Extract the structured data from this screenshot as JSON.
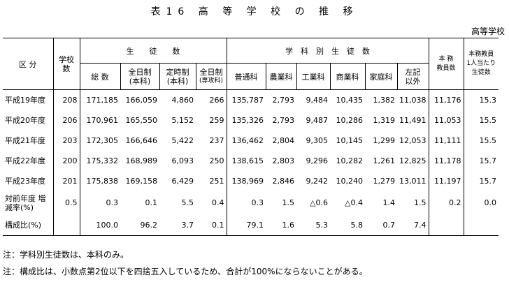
{
  "title": "表16 高 等 学 校 の 推 移",
  "unit": "高等学校",
  "header": {
    "kubun": "区 分",
    "gakkosu_1": "学校",
    "gakkosu_2": "数",
    "seitosu": "生　　徒　　数",
    "gakkabetsu": "学　科　別　生　徒　数",
    "honmu_1": "本 務",
    "honmu_2": "教員数",
    "per_1": "本務教員",
    "per_2": "1人当たり",
    "per_3": "生徒数",
    "sub": {
      "souzu": "総 数",
      "zen_1": "全日制",
      "zen_2": "(本科)",
      "tei_1": "定時制",
      "tei_2": "(本科)",
      "zs_1": "全日制",
      "zs_2": "(専攻科)",
      "futsu": "普通科",
      "nogyo": "農業科",
      "kogyo": "工業科",
      "shogyo": "商業科",
      "katei": "家庭科",
      "sak_1": "左記",
      "sak_2": "以外"
    }
  },
  "rows": [
    {
      "label": "平成19年度",
      "v": [
        "208",
        "171,185",
        "166,059",
        "4,860",
        "266",
        "135,787",
        "2,793",
        "9,484",
        "10,435",
        "1,382",
        "11,038",
        "11,176",
        "15.3"
      ]
    },
    {
      "label": "平成20年度",
      "v": [
        "206",
        "170,961",
        "165,550",
        "5,152",
        "259",
        "135,326",
        "2,793",
        "9,487",
        "10,286",
        "1,319",
        "11,491",
        "11,053",
        "15.5"
      ]
    },
    {
      "label": "平成21年度",
      "v": [
        "203",
        "172,305",
        "166,646",
        "5,422",
        "237",
        "136,462",
        "2,804",
        "9,305",
        "10,145",
        "1,299",
        "12,053",
        "11,111",
        "15.5"
      ]
    },
    {
      "label": "平成22年度",
      "v": [
        "200",
        "175,332",
        "168,989",
        "6,093",
        "250",
        "138,615",
        "2,803",
        "9,296",
        "10,282",
        "1,261",
        "12,825",
        "11,178",
        "15.7"
      ]
    },
    {
      "label": "平成23年度",
      "v": [
        "201",
        "175,838",
        "169,158",
        "6,429",
        "251",
        "138,969",
        "2,846",
        "9,242",
        "10,240",
        "1,279",
        "13,011",
        "11,197",
        "15.7"
      ]
    }
  ],
  "change": {
    "label_1": "対前年度 増",
    "label_2": "減率(%)",
    "v": [
      "0.5",
      "0.3",
      "0.1",
      "5.5",
      "0.4",
      "0.3",
      "1.5",
      "△0.6",
      "△0.4",
      "1.4",
      "1.5",
      "0.2",
      "0.0"
    ]
  },
  "ratio": {
    "label": "構成比(%)",
    "v": [
      "",
      "100.0",
      "96.2",
      "3.7",
      "0.1",
      "79.1",
      "1.6",
      "5.3",
      "5.8",
      "0.7",
      "7.4",
      "",
      ""
    ]
  },
  "notes": [
    "注：学科別生徒数は、本科のみ。",
    "注：構成比は、小数点第2位以下を四捨五入しているため、合計が100%にならないことがある。"
  ]
}
